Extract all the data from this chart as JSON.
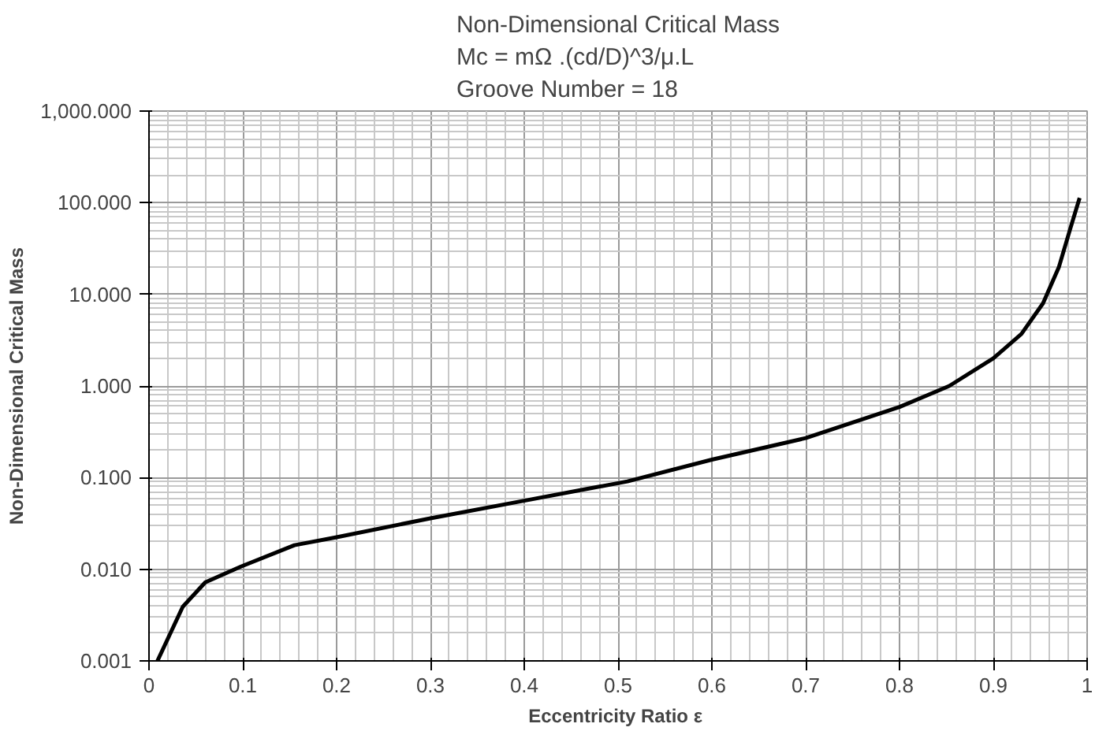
{
  "chart_data": {
    "type": "line",
    "title": "Non-Dimensional Critical Mass\nMc = mΩ .(cd/D)^3/μ.L\nGroove Number = 18",
    "xlabel": "Eccentricity Ratio  ε",
    "ylabel": "Non-Dimensional Critical Mass",
    "log": "y",
    "grid": true,
    "marker": "none",
    "line_style": "solid",
    "xlim": [
      0,
      1
    ],
    "xticks": [
      0,
      0.1,
      0.2,
      0.3,
      0.4,
      0.5,
      0.6,
      0.7,
      0.8,
      0.9,
      1
    ],
    "ylim": [
      0.001,
      1000
    ],
    "yticks": [
      {
        "value": 0.001,
        "label": "0.001"
      },
      {
        "value": 0.01,
        "label": "0.010"
      },
      {
        "value": 0.1,
        "label": "0.100"
      },
      {
        "value": 1,
        "label": "1.000"
      },
      {
        "value": 10,
        "label": "10.000"
      },
      {
        "value": 100,
        "label": "100.000"
      },
      {
        "value": 1000,
        "label": "1,000.000"
      }
    ],
    "series": [
      {
        "color": "#000000",
        "x": [
          0.009,
          0.036,
          0.06,
          0.098,
          0.155,
          0.2,
          0.3,
          0.4,
          0.472,
          0.51,
          0.6,
          0.7,
          0.8,
          0.853,
          0.9,
          0.93,
          0.953,
          0.97,
          0.982,
          0.992
        ],
        "values": [
          0.001,
          0.0039,
          0.0072,
          0.0107,
          0.0183,
          0.0224,
          0.036,
          0.056,
          0.077,
          0.091,
          0.157,
          0.27,
          0.59,
          1.0,
          2.0,
          3.7,
          8,
          20,
          52,
          113
        ]
      }
    ]
  }
}
